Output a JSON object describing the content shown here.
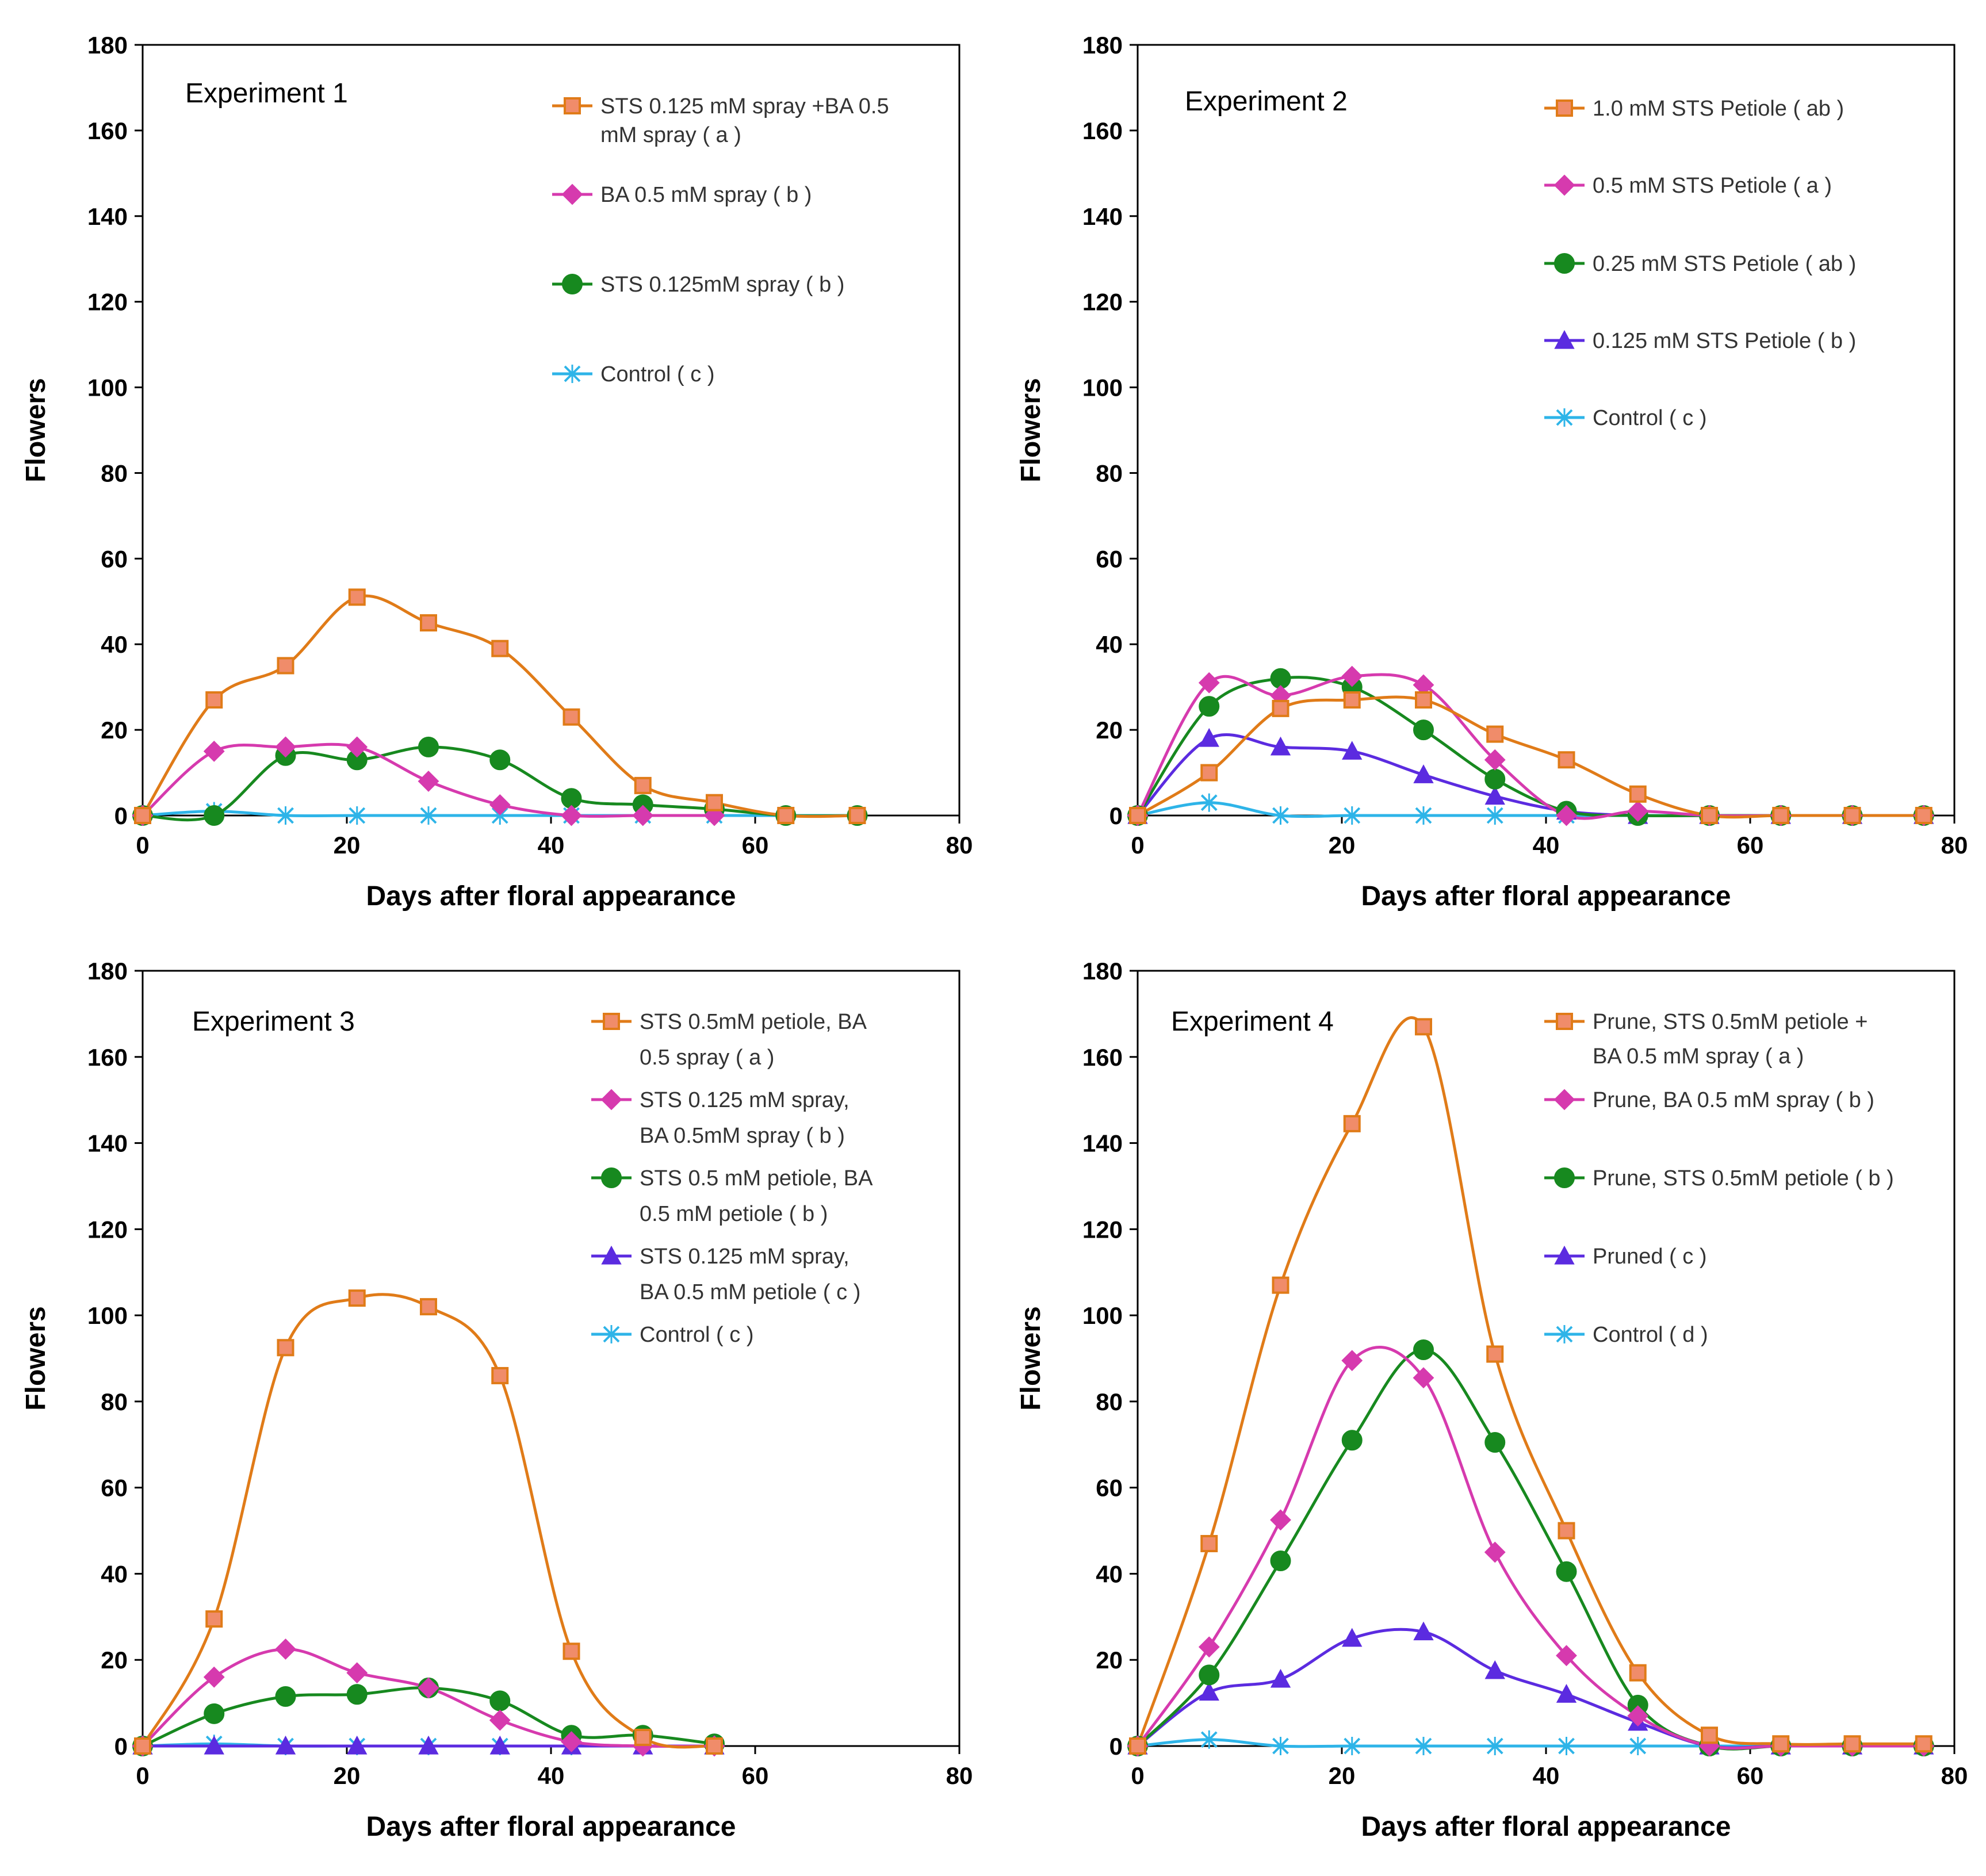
{
  "figure": {
    "description_label": "Four-panel figure: flowers vs days after floral appearance"
  },
  "chart_data": [
    {
      "type": "line",
      "title": "Experiment 1",
      "xlabel": "Days after floral appearance",
      "ylabel": "Flowers",
      "xlim": [
        0,
        80
      ],
      "ylim": [
        0,
        180
      ],
      "xticks": [
        0,
        20,
        40,
        60,
        80
      ],
      "yticks": [
        0,
        20,
        40,
        60,
        80,
        100,
        120,
        140,
        160,
        180
      ],
      "grid": false,
      "legend_position": "top-right",
      "series": [
        {
          "name": "STS 0.125 mM spray +BA 0.5 mM spray  ( a )",
          "legend_lines": [
            "STS 0.125 mM spray +BA 0.5",
            "mM spray  ( a )"
          ],
          "color": "#E07B18",
          "marker": "square",
          "marker_fill": "#F08C6A",
          "x": [
            0,
            7,
            14,
            21,
            28,
            35,
            42,
            49,
            56,
            63,
            70
          ],
          "y": [
            0,
            27,
            35,
            51,
            45,
            39,
            23,
            7,
            3,
            0,
            0
          ]
        },
        {
          "name": "BA 0.5 mM spray ( b )",
          "legend_lines": [
            "BA 0.5 mM spray ( b )"
          ],
          "color": "#D63AAE",
          "marker": "diamond",
          "x": [
            0,
            7,
            14,
            21,
            28,
            35,
            42,
            49,
            56
          ],
          "y": [
            0,
            15,
            16,
            16,
            8,
            2.5,
            0,
            0,
            0
          ]
        },
        {
          "name": "STS 0.125mM spray ( b )",
          "legend_lines": [
            "STS 0.125mM spray ( b )"
          ],
          "color": "#17891F",
          "marker": "circle",
          "x": [
            0,
            7,
            14,
            21,
            28,
            35,
            42,
            49,
            56,
            63,
            70
          ],
          "y": [
            0,
            0,
            14,
            13,
            16,
            13,
            4,
            2.5,
            1.5,
            0,
            0
          ]
        },
        {
          "name": "Control ( c )",
          "legend_lines": [
            "Control ( c )"
          ],
          "color": "#2EB4E8",
          "marker": "x",
          "x": [
            0,
            7,
            14,
            21,
            28,
            35,
            42,
            49,
            56,
            63,
            70
          ],
          "y": [
            0,
            1,
            0,
            0,
            0,
            0,
            0,
            0,
            0,
            0,
            0
          ]
        }
      ]
    },
    {
      "type": "line",
      "title": "Experiment 2",
      "xlabel": "Days after floral appearance",
      "ylabel": "Flowers",
      "xlim": [
        0,
        80
      ],
      "ylim": [
        0,
        180
      ],
      "xticks": [
        0,
        20,
        40,
        60,
        80
      ],
      "yticks": [
        0,
        20,
        40,
        60,
        80,
        100,
        120,
        140,
        160,
        180
      ],
      "grid": false,
      "legend_position": "top-right",
      "series": [
        {
          "name": "1.0 mM STS Petiole ( ab )",
          "legend_lines": [
            "1.0 mM STS Petiole ( ab )"
          ],
          "color": "#E07B18",
          "marker": "square",
          "marker_fill": "#F08C6A",
          "x": [
            0,
            7,
            14,
            21,
            28,
            35,
            42,
            49,
            56,
            63,
            70,
            77
          ],
          "y": [
            0,
            10,
            25,
            27,
            27,
            19,
            13,
            5,
            0,
            0,
            0,
            0
          ]
        },
        {
          "name": "0.5 mM STS Petiole ( a )",
          "legend_lines": [
            "0.5 mM STS Petiole ( a )"
          ],
          "color": "#D63AAE",
          "marker": "diamond",
          "x": [
            0,
            7,
            14,
            21,
            28,
            35,
            42,
            49,
            56,
            63,
            70,
            77
          ],
          "y": [
            0,
            31,
            28,
            32.5,
            30.5,
            13,
            0,
            1,
            0,
            0,
            0,
            0
          ]
        },
        {
          "name": "0.25 mM STS Petiole ( ab )",
          "legend_lines": [
            "0.25 mM STS Petiole ( ab )"
          ],
          "color": "#17891F",
          "marker": "circle",
          "x": [
            0,
            7,
            14,
            21,
            28,
            35,
            42,
            49,
            56,
            63,
            70,
            77
          ],
          "y": [
            0,
            25.5,
            32,
            30,
            20,
            8.5,
            1,
            0,
            0,
            0,
            0,
            0
          ]
        },
        {
          "name": "0.125 mM STS Petiole ( b )",
          "legend_lines": [
            "0.125 mM STS Petiole ( b )"
          ],
          "color": "#5B2BE0",
          "marker": "triangle",
          "x": [
            0,
            7,
            14,
            21,
            28,
            35,
            42,
            49,
            56,
            63,
            70,
            77
          ],
          "y": [
            0,
            18,
            16,
            15,
            9.5,
            4.5,
            1,
            0,
            0,
            0,
            0,
            0
          ]
        },
        {
          "name": "Control ( c )",
          "legend_lines": [
            "Control ( c )"
          ],
          "color": "#2EB4E8",
          "marker": "x",
          "x": [
            0,
            7,
            14,
            21,
            28,
            35,
            42,
            49,
            56,
            63,
            70,
            77
          ],
          "y": [
            0,
            3,
            0,
            0,
            0,
            0,
            0,
            0,
            0,
            0,
            0,
            0
          ]
        }
      ]
    },
    {
      "type": "line",
      "title": "Experiment 3",
      "xlabel": "Days after floral appearance",
      "ylabel": "Flowers",
      "xlim": [
        0,
        80
      ],
      "ylim": [
        0,
        180
      ],
      "xticks": [
        0,
        20,
        40,
        60,
        80
      ],
      "yticks": [
        0,
        20,
        40,
        60,
        80,
        100,
        120,
        140,
        160,
        180
      ],
      "grid": false,
      "legend_position": "top-right",
      "series": [
        {
          "name": "STS 0.5mM petiole, BA 0.5 spray ( a )",
          "legend_lines": [
            "STS 0.5mM petiole, BA",
            "0.5 spray ( a )"
          ],
          "color": "#E07B18",
          "marker": "square",
          "marker_fill": "#F08C6A",
          "x": [
            0,
            7,
            14,
            21,
            28,
            35,
            42,
            49,
            56
          ],
          "y": [
            0,
            29.5,
            92.5,
            104,
            102,
            86,
            22,
            2,
            0
          ]
        },
        {
          "name": "STS 0.125 mM spray, BA 0.5mM spray ( b )",
          "legend_lines": [
            "STS 0.125 mM spray,",
            "BA 0.5mM spray ( b )"
          ],
          "color": "#D63AAE",
          "marker": "diamond",
          "x": [
            0,
            7,
            14,
            21,
            28,
            35,
            42,
            49,
            56
          ],
          "y": [
            0,
            16,
            22.5,
            17,
            13.5,
            6,
            1,
            0,
            0
          ]
        },
        {
          "name": "STS 0.5 mM petiole, BA 0.5 mM petiole ( b )",
          "legend_lines": [
            "STS 0.5 mM petiole, BA",
            "0.5 mM petiole ( b )"
          ],
          "color": "#17891F",
          "marker": "circle",
          "x": [
            0,
            7,
            14,
            21,
            28,
            35,
            42,
            49,
            56
          ],
          "y": [
            0,
            7.5,
            11.5,
            12,
            13.5,
            10.5,
            2.5,
            2.5,
            0.5
          ]
        },
        {
          "name": "STS 0.125 mM spray, BA 0.5 mM petiole ( c )",
          "legend_lines": [
            "STS 0.125 mM spray,",
            "BA 0.5 mM petiole ( c )"
          ],
          "color": "#5B2BE0",
          "marker": "triangle",
          "x": [
            0,
            7,
            14,
            21,
            28,
            35,
            42,
            49,
            56
          ],
          "y": [
            0,
            0,
            0,
            0,
            0,
            0,
            0,
            0,
            0
          ]
        },
        {
          "name": "Control ( c )",
          "legend_lines": [
            "Control ( c )"
          ],
          "color": "#2EB4E8",
          "marker": "x",
          "x": [
            0,
            7,
            14,
            21,
            28,
            35,
            42,
            49,
            56
          ],
          "y": [
            0,
            0.5,
            0,
            0,
            0,
            0,
            0,
            0,
            0
          ]
        }
      ]
    },
    {
      "type": "line",
      "title": "Experiment 4",
      "xlabel": "Days after floral appearance",
      "ylabel": "Flowers",
      "xlim": [
        0,
        80
      ],
      "ylim": [
        0,
        180
      ],
      "xticks": [
        0,
        20,
        40,
        60,
        80
      ],
      "yticks": [
        0,
        20,
        40,
        60,
        80,
        100,
        120,
        140,
        160,
        180
      ],
      "grid": false,
      "legend_position": "top-right",
      "series": [
        {
          "name": "Prune, STS 0.5mM petiole + BA 0.5 mM spray ( a )",
          "legend_lines": [
            "Prune, STS 0.5mM petiole +",
            "BA 0.5 mM spray ( a )"
          ],
          "color": "#E07B18",
          "marker": "square",
          "marker_fill": "#F08C6A",
          "x": [
            0,
            7,
            14,
            21,
            28,
            35,
            42,
            49,
            56,
            63,
            70,
            77
          ],
          "y": [
            0,
            47,
            107,
            144.5,
            167,
            91,
            50,
            17,
            2.5,
            0.5,
            0.5,
            0.5
          ]
        },
        {
          "name": "Prune, BA 0.5 mM spray ( b )",
          "legend_lines": [
            "Prune, BA 0.5 mM spray ( b )"
          ],
          "color": "#D63AAE",
          "marker": "diamond",
          "x": [
            0,
            7,
            14,
            21,
            28,
            35,
            42,
            49,
            56,
            63,
            70,
            77
          ],
          "y": [
            0,
            23,
            52.5,
            89.5,
            85.5,
            45,
            21,
            7,
            0,
            0,
            0,
            0
          ]
        },
        {
          "name": "Prune, STS 0.5mM petiole ( b )",
          "legend_lines": [
            "Prune, STS 0.5mM petiole ( b )"
          ],
          "color": "#17891F",
          "marker": "circle",
          "x": [
            0,
            7,
            14,
            21,
            28,
            35,
            42,
            49,
            56,
            63,
            70,
            77
          ],
          "y": [
            0,
            16.5,
            43,
            71,
            92,
            70.5,
            40.5,
            9.5,
            0,
            0,
            0,
            0
          ]
        },
        {
          "name": "Pruned ( c )",
          "legend_lines": [
            "Pruned ( c )"
          ],
          "color": "#5B2BE0",
          "marker": "triangle",
          "x": [
            0,
            7,
            14,
            21,
            28,
            35,
            42,
            49,
            56,
            63,
            70,
            77
          ],
          "y": [
            0,
            12.5,
            15.5,
            25,
            26.5,
            17.5,
            12,
            5.5,
            0,
            0,
            0,
            0
          ]
        },
        {
          "name": "Control ( d )",
          "legend_lines": [
            "Control ( d )"
          ],
          "color": "#2EB4E8",
          "marker": "x",
          "x": [
            0,
            7,
            14,
            21,
            28,
            35,
            42,
            49,
            56,
            63,
            70,
            77
          ],
          "y": [
            0,
            1.5,
            0,
            0,
            0,
            0,
            0,
            0,
            0,
            0,
            0,
            0
          ]
        }
      ]
    }
  ]
}
